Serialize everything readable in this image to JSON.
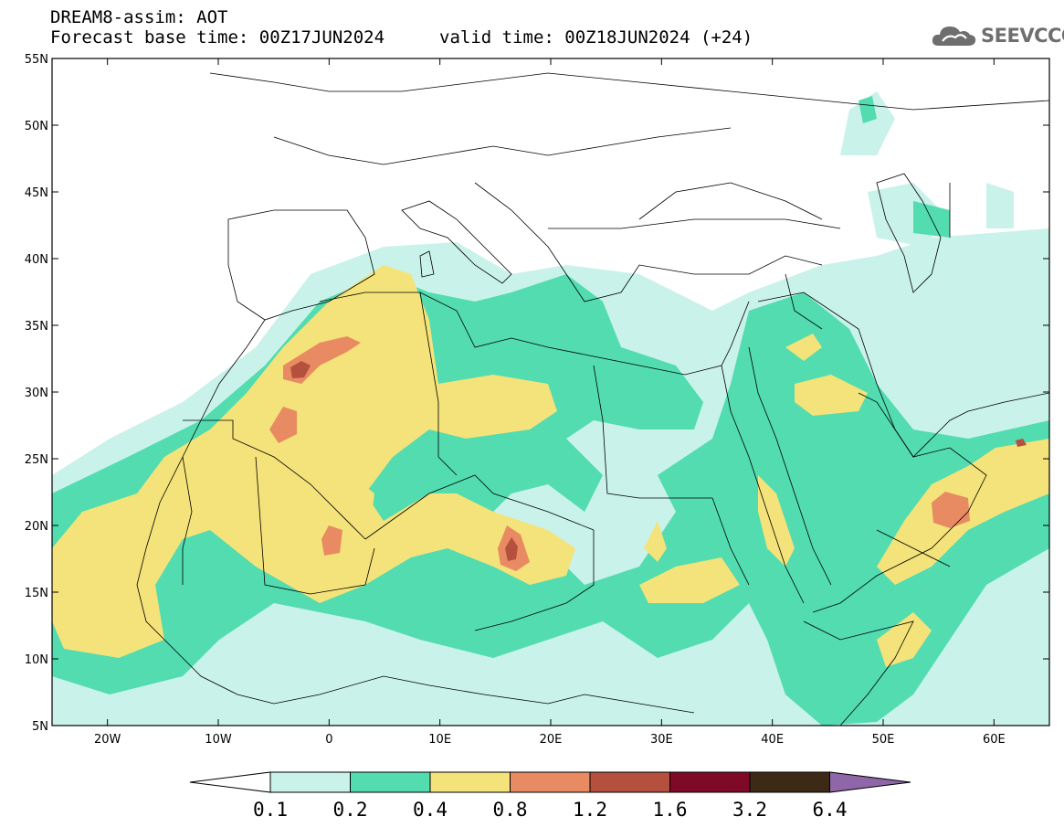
{
  "header": {
    "line1": "DREAM8-assim: AOT",
    "base_time": "Forecast base time: 00Z17JUN2024",
    "valid_time": "valid time: 00Z18JUN2024 (+24)",
    "logo_text": "SEEVCCC",
    "logo_icon": "cloud-icon"
  },
  "map": {
    "projection": "lat-lon",
    "lon_range": [
      -25,
      65
    ],
    "lat_range": [
      5,
      55
    ],
    "lat_ticks": [
      "55N",
      "50N",
      "45N",
      "40N",
      "35N",
      "30N",
      "25N",
      "20N",
      "15N",
      "10N",
      "5N"
    ],
    "lon_ticks": [
      "20W",
      "10W",
      "0",
      "10E",
      "20E",
      "30E",
      "40E",
      "50E",
      "60E"
    ],
    "ocean_color": "#ffffff",
    "border_color": "#000000"
  },
  "colorbar": {
    "labels": [
      "0.1",
      "0.2",
      "0.4",
      "0.8",
      "1.2",
      "1.6",
      "3.2",
      "6.4"
    ],
    "colors": [
      "#c9f2ea",
      "#52dcb0",
      "#f4e37a",
      "#e88a62",
      "#b5503f",
      "#7f0a27",
      "#3d2a16"
    ],
    "under_color": "#ffffff",
    "over_color": "#8f67a9"
  }
}
